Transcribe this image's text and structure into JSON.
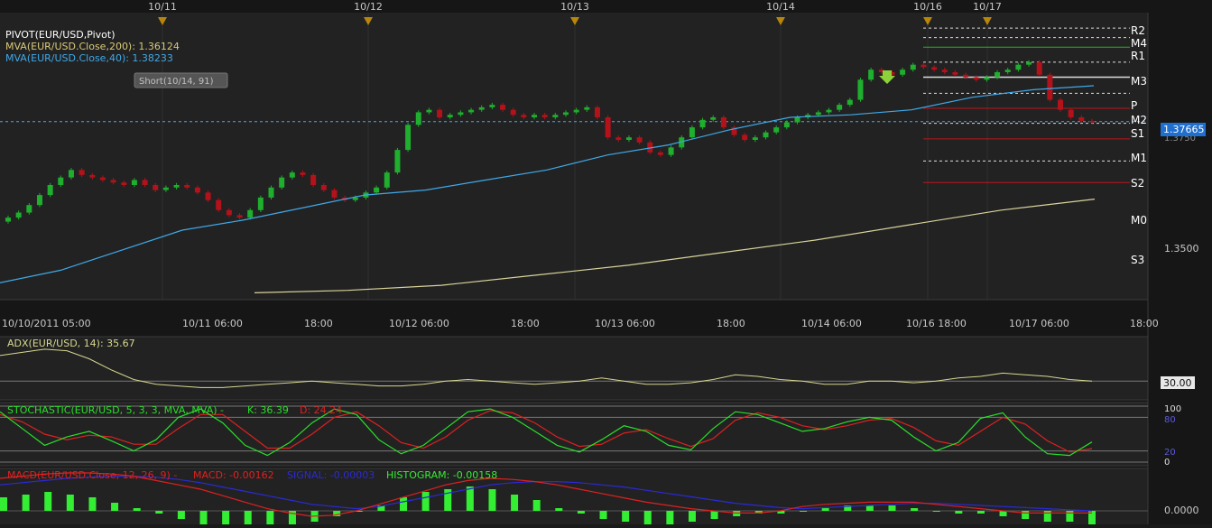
{
  "date_markers": [
    "10/11",
    "10/12",
    "10/13",
    "10/14",
    "10/16",
    "10/17"
  ],
  "main": {
    "legend": [
      {
        "text": "PIVOT(EUR/USD,Pivot)",
        "color": "#ffffff"
      },
      {
        "text": "MVA(EUR/USD.Close,200): 1.36124",
        "color": "#d9c97a"
      },
      {
        "text": "MVA(EUR/USD.Close,40): 1.38233",
        "color": "#3fa9e8"
      }
    ],
    "event_label": "Short(10/14, 91)",
    "current_price": "1.37665",
    "hidden_price": "1.3750",
    "price_tick": "1.3500",
    "x_ticks": [
      "10/10/2011 05:00",
      "10/11 06:00",
      "18:00",
      "10/12 06:00",
      "18:00",
      "10/13 06:00",
      "18:00",
      "10/14 06:00",
      "10/16 18:00",
      "10/17 06:00",
      "18:00"
    ],
    "pivot_labels": [
      "R2",
      "M4",
      "R1",
      "M3",
      "P",
      "M2",
      "S1",
      "M1",
      "S2",
      "M0",
      "S3"
    ]
  },
  "adx": {
    "label": "ADX(EUR/USD, 14): 35.67",
    "ref_label": "30.00"
  },
  "stoch": {
    "label": "STOCHASTIC(EUR/USD, 5, 3, 3, MVA, MVA) -",
    "k_label": "K: 36.39",
    "d_label": "D: 24.24",
    "axis_labels": [
      "100",
      "80",
      "20",
      "0"
    ]
  },
  "macd": {
    "label": "MACD(EUR/USD.Close, 12, 26, 9) -",
    "macd_label": "MACD: -0.00162",
    "signal_label": "SIGNAL: -0.00003",
    "hist_label": "HISTOGRAM: -0.00158",
    "axis_label": "0.0000"
  },
  "colors": {
    "up": "#1fae2e",
    "down": "#b3121b",
    "ma40": "#3fa9e8",
    "ma200": "#d9d49a",
    "pivot_green": "#27b327",
    "pivot_red": "#c0141c",
    "pivot_white": "#dddddd",
    "adx": "#d8d890",
    "stoch_k": "#2adf2a",
    "stoch_d": "#e02020",
    "macd": "#e02020",
    "signal": "#2a2ad8",
    "hist": "#33ee33",
    "marker": "#b8860b"
  },
  "chart_data": [
    {
      "type": "candlestick",
      "instrument": "EUR/USD",
      "x_ticks": [
        "10/10/2011 05:00",
        "10/11 06:00",
        "18:00",
        "10/12 06:00",
        "18:00",
        "10/13 06:00",
        "18:00",
        "10/14 06:00",
        "10/16 18:00",
        "10/17 06:00",
        "18:00"
      ],
      "y_ticks": [
        1.35
      ],
      "ylim": [
        1.3415,
        1.3955
      ],
      "current_price": 1.37665,
      "close_path": [
        1.3575,
        1.3585,
        1.36,
        1.362,
        1.364,
        1.3655,
        1.367,
        1.366,
        1.3655,
        1.365,
        1.3645,
        1.364,
        1.365,
        1.364,
        1.363,
        1.3635,
        1.364,
        1.3635,
        1.3625,
        1.361,
        1.359,
        1.358,
        1.3575,
        1.359,
        1.3615,
        1.3635,
        1.3655,
        1.3665,
        1.366,
        1.364,
        1.363,
        1.3615,
        1.361,
        1.3615,
        1.3625,
        1.3635,
        1.3665,
        1.371,
        1.376,
        1.3785,
        1.379,
        1.3775,
        1.378,
        1.3785,
        1.379,
        1.3795,
        1.38,
        1.379,
        1.378,
        1.3775,
        1.378,
        1.3775,
        1.378,
        1.3785,
        1.379,
        1.3795,
        1.3775,
        1.3735,
        1.373,
        1.3735,
        1.3725,
        1.3705,
        1.37,
        1.3715,
        1.3735,
        1.3755,
        1.377,
        1.3775,
        1.3755,
        1.374,
        1.373,
        1.3735,
        1.3745,
        1.3755,
        1.3765,
        1.3775,
        1.378,
        1.3785,
        1.379,
        1.38,
        1.381,
        1.385,
        1.387,
        1.3865,
        1.386,
        1.387,
        1.388,
        1.3875,
        1.387,
        1.3865,
        1.386,
        1.3855,
        1.385,
        1.3855,
        1.3865,
        1.387,
        1.388,
        1.3885,
        1.386,
        1.381,
        1.379,
        1.3775,
        1.3768,
        1.37665
      ],
      "series": [
        {
          "name": "MVA(EUR/USD.Close,40)",
          "value": 1.38233
        },
        {
          "name": "MVA(EUR/USD.Close,200)",
          "value": 1.36124
        }
      ],
      "ma40_path": [
        1.3445,
        1.347,
        1.351,
        1.355,
        1.357,
        1.3595,
        1.362,
        1.363,
        1.365,
        1.367,
        1.37,
        1.372,
        1.375,
        1.3775,
        1.378,
        1.379,
        1.3815,
        1.383,
        1.3838
      ],
      "ma200_path": [
        1.3425,
        1.343,
        1.344,
        1.346,
        1.348,
        1.3505,
        1.353,
        1.356,
        1.359,
        1.3612
      ],
      "pivot_levels": [
        {
          "name": "R2",
          "value": 1.3953
        },
        {
          "name": "M4",
          "value": 1.3934
        },
        {
          "name": "R1",
          "value": 1.3915
        },
        {
          "name": "M3",
          "value": 1.3885
        },
        {
          "name": "P",
          "value": 1.3855
        },
        {
          "name": "M2",
          "value": 1.3823
        },
        {
          "name": "S1",
          "value": 1.3793
        },
        {
          "name": "M1",
          "value": 1.3763
        },
        {
          "name": "S2",
          "value": 1.3732
        },
        {
          "name": "M0",
          "value": 1.3688
        },
        {
          "name": "S3",
          "value": 1.3645
        }
      ]
    },
    {
      "type": "line",
      "series": [
        {
          "name": "ADX(EUR/USD, 14)",
          "value": 35.67
        }
      ],
      "y_ticks": [
        30
      ],
      "path": [
        46,
        48,
        50,
        49,
        44,
        37,
        31,
        28,
        27,
        26,
        26,
        27,
        28,
        29,
        30,
        29,
        28,
        27,
        27,
        28,
        30,
        31,
        30,
        29,
        28,
        29,
        30,
        32,
        30,
        28,
        28,
        29,
        31,
        34,
        33,
        31,
        30,
        28,
        28,
        30,
        30,
        29,
        30,
        32,
        33,
        35,
        34,
        33,
        31,
        30
      ]
    },
    {
      "type": "line",
      "series": [
        {
          "name": "K",
          "value": 36.39,
          "path": [
            90,
            60,
            30,
            45,
            55,
            38,
            20,
            40,
            80,
            95,
            70,
            30,
            12,
            35,
            70,
            95,
            85,
            40,
            15,
            30,
            60,
            90,
            95,
            80,
            55,
            30,
            18,
            40,
            65,
            55,
            30,
            22,
            60,
            90,
            85,
            70,
            55,
            60,
            72,
            80,
            75,
            45,
            20,
            35,
            78,
            88,
            45,
            15,
            12,
            36
          ]
        },
        {
          "name": "D",
          "value": 24.24,
          "path": [
            85,
            72,
            50,
            40,
            48,
            45,
            32,
            32,
            60,
            85,
            85,
            55,
            25,
            25,
            50,
            80,
            90,
            65,
            35,
            25,
            45,
            75,
            92,
            88,
            70,
            45,
            28,
            32,
            52,
            58,
            42,
            28,
            42,
            75,
            88,
            80,
            65,
            58,
            65,
            75,
            78,
            62,
            38,
            30,
            55,
            80,
            68,
            38,
            18,
            24
          ]
        }
      ],
      "ylim": [
        0,
        100
      ],
      "y_ticks": [
        0,
        20,
        80,
        100
      ]
    },
    {
      "type": "line",
      "series": [
        {
          "name": "MACD",
          "value": -0.00162
        },
        {
          "name": "SIGNAL",
          "value": -3e-05
        },
        {
          "name": "HISTOGRAM",
          "value": -0.00158
        }
      ],
      "y_ticks": [
        0.0
      ],
      "macd_path": [
        30,
        32,
        34,
        35,
        35,
        34,
        32,
        28,
        24,
        20,
        14,
        8,
        2,
        -2,
        -5,
        -4,
        0,
        6,
        12,
        18,
        24,
        28,
        30,
        29,
        27,
        24,
        20,
        16,
        12,
        8,
        5,
        2,
        0,
        -2,
        -2,
        0,
        4,
        6,
        7,
        8,
        8,
        8,
        6,
        4,
        2,
        0,
        -2,
        -2,
        -2,
        -2
      ],
      "signal_path": [
        24,
        26,
        28,
        30,
        31,
        32,
        32,
        31,
        29,
        26,
        22,
        18,
        14,
        10,
        6,
        4,
        2,
        4,
        8,
        12,
        16,
        20,
        24,
        26,
        27,
        27,
        26,
        24,
        22,
        19,
        16,
        13,
        10,
        7,
        5,
        3,
        2,
        3,
        4,
        5,
        6,
        7,
        7,
        6,
        5,
        4,
        3,
        2,
        1,
        0
      ],
      "hist_values": [
        5,
        6,
        7,
        6,
        5,
        3,
        1,
        -1,
        -3,
        -5,
        -6,
        -6,
        -6,
        -5,
        -4,
        -2,
        0,
        2,
        5,
        7,
        8,
        9,
        8,
        6,
        4,
        1,
        -1,
        -3,
        -4,
        -5,
        -5,
        -4,
        -3,
        -2,
        -1,
        -1,
        0,
        1,
        2,
        2,
        2,
        1,
        0,
        -1,
        -1,
        -2,
        -3,
        -4,
        -4,
        -5
      ]
    }
  ]
}
